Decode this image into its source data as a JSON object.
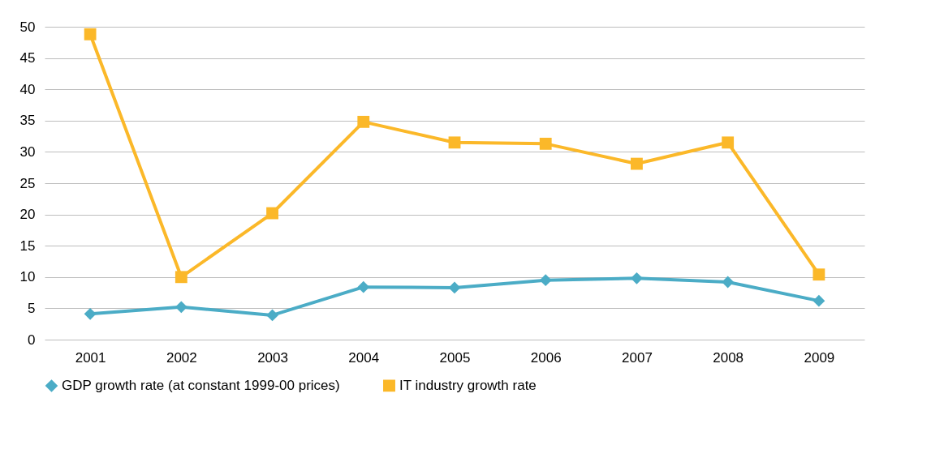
{
  "chart_data": {
    "type": "line",
    "categories": [
      "2001",
      "2002",
      "2003",
      "2004",
      "2005",
      "2006",
      "2007",
      "2008",
      "2009"
    ],
    "series": [
      {
        "name": "GDP growth rate (at constant 1999-00 prices)",
        "color": "#4bacc6",
        "marker": "diamond",
        "values": [
          4.1,
          5.2,
          3.9,
          8.4,
          8.3,
          9.5,
          9.8,
          9.2,
          6.2
        ]
      },
      {
        "name": "IT industry growth rate",
        "color": "#fbb829",
        "marker": "square",
        "values": [
          48.8,
          10.0,
          20.2,
          34.8,
          31.5,
          31.3,
          28.1,
          31.5,
          10.4
        ]
      }
    ],
    "ylim": [
      0,
      50
    ],
    "yticks": [
      0,
      5,
      10,
      15,
      20,
      25,
      30,
      35,
      40,
      45,
      50
    ],
    "grid": "y",
    "legend": "bottom",
    "line_style": "solid"
  }
}
